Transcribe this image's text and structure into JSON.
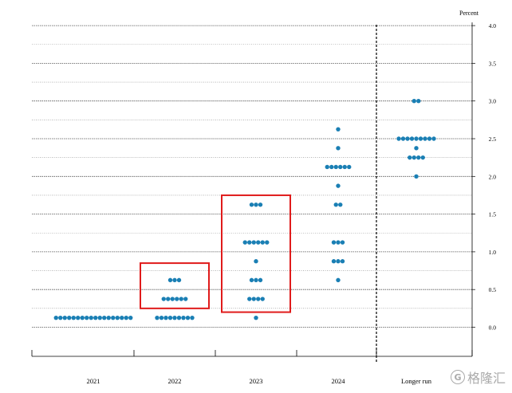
{
  "chart_data": {
    "type": "scatter",
    "unit_label": "Percent",
    "categories": [
      "2021",
      "2022",
      "2023",
      "2024",
      "Longer run"
    ],
    "ylim": [
      -0.25,
      4.0
    ],
    "yticks": [
      "0.0",
      "0.5",
      "1.0",
      "1.5",
      "2.0",
      "2.5",
      "3.0",
      "3.5",
      "4.0"
    ],
    "grid": true,
    "dots": [
      {
        "category": "2021",
        "rate": 0.125,
        "count": 18
      },
      {
        "category": "2022",
        "rate": 0.125,
        "count": 9
      },
      {
        "category": "2022",
        "rate": 0.375,
        "count": 6
      },
      {
        "category": "2022",
        "rate": 0.625,
        "count": 3
      },
      {
        "category": "2023",
        "rate": 0.125,
        "count": 1
      },
      {
        "category": "2023",
        "rate": 0.375,
        "count": 4
      },
      {
        "category": "2023",
        "rate": 0.625,
        "count": 3
      },
      {
        "category": "2023",
        "rate": 0.875,
        "count": 1
      },
      {
        "category": "2023",
        "rate": 1.125,
        "count": 6
      },
      {
        "category": "2023",
        "rate": 1.625,
        "count": 3
      },
      {
        "category": "2024",
        "rate": 0.625,
        "count": 1
      },
      {
        "category": "2024",
        "rate": 0.875,
        "count": 3
      },
      {
        "category": "2024",
        "rate": 1.125,
        "count": 3
      },
      {
        "category": "2024",
        "rate": 1.625,
        "count": 2
      },
      {
        "category": "2024",
        "rate": 1.875,
        "count": 1
      },
      {
        "category": "2024",
        "rate": 2.125,
        "count": 6
      },
      {
        "category": "2024",
        "rate": 2.375,
        "count": 1
      },
      {
        "category": "2024",
        "rate": 2.625,
        "count": 1
      },
      {
        "category": "Longer run",
        "rate": 2.0,
        "count": 1
      },
      {
        "category": "Longer run",
        "rate": 2.25,
        "count": 4
      },
      {
        "category": "Longer run",
        "rate": 2.375,
        "count": 1
      },
      {
        "category": "Longer run",
        "rate": 2.5,
        "count": 9
      },
      {
        "category": "Longer run",
        "rate": 3.0,
        "count": 2
      }
    ],
    "highlight_boxes": [
      {
        "category": "2022",
        "rate_range": [
          0.25,
          0.85
        ]
      },
      {
        "category": "2023",
        "rate_range": [
          0.2,
          1.75
        ]
      }
    ],
    "separator_before": "Longer run",
    "dot_color": "#1a7fb4",
    "highlight_color": "#e01b1b"
  },
  "watermark": {
    "logo": "G",
    "text": "格隆汇"
  }
}
